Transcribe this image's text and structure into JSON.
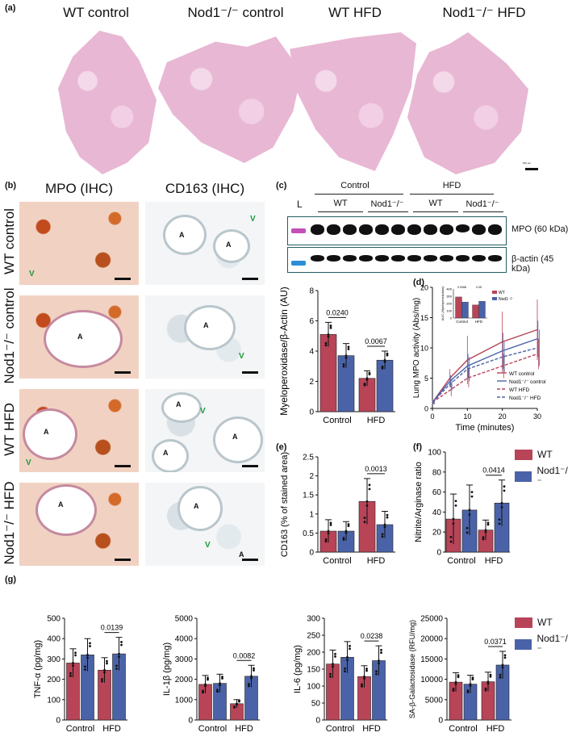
{
  "panel_a": {
    "label": "(a)",
    "columns": [
      "WT control",
      "Nod1⁻/⁻ control",
      "WT HFD",
      "Nod1⁻/⁻ HFD"
    ],
    "scale_bar": "500 µm"
  },
  "panel_b": {
    "label": "(b)",
    "col_mpo": "MPO (IHC)",
    "col_cd163": "CD163 (IHC)",
    "rows": [
      "WT control",
      "Nod1⁻/⁻ control",
      "WT HFD",
      "Nod1⁻/⁻ HFD"
    ],
    "lumen": "A",
    "vessel": "V"
  },
  "panel_c": {
    "label": "(c)",
    "ladder": "L",
    "group_control": "Control",
    "group_hfd": "HFD",
    "sub_wt": "WT",
    "sub_nod": "Nod1⁻/⁻",
    "band_mpo": "MPO (60 kDa)",
    "band_actin": "β-actin (45 kDa)"
  },
  "colors": {
    "wt": "#b84458",
    "nod": "#4a63a8",
    "border": "#245e62"
  },
  "chart_data": [
    {
      "id": "c",
      "type": "bar",
      "ylabel": "Myeloperoxidase/β-Actin (AU)",
      "categories": [
        "Control",
        "HFD"
      ],
      "ylim": [
        0,
        8
      ],
      "yticks": [
        0,
        2,
        4,
        6,
        8
      ],
      "series": [
        {
          "values": [
            5.1,
            2.2
          ],
          "err": [
            0.8,
            0.5
          ]
        },
        {
          "values": [
            3.7,
            3.4
          ],
          "err": [
            0.8,
            0.6
          ]
        }
      ],
      "pvalues": [
        "0.0240",
        "0.0067"
      ]
    },
    {
      "id": "d",
      "type": "line",
      "xlabel": "Time (minutes)",
      "ylabel": "Lung MPO activity (Abs/mg)",
      "x": [
        0,
        5,
        10,
        20,
        30
      ],
      "xlim": [
        0,
        30
      ],
      "ylim": [
        0,
        20
      ],
      "yticks": [
        0,
        5,
        10,
        15,
        20
      ],
      "xticks": [
        0,
        10,
        20,
        30
      ],
      "series": [
        {
          "name": "WT control",
          "values": [
            1,
            5,
            8,
            11,
            13
          ],
          "err": [
            0.4,
            1.5,
            4,
            5,
            5
          ]
        },
        {
          "name": "Nod1⁻/⁻ control",
          "values": [
            1,
            4.5,
            7,
            9.5,
            11.5
          ],
          "err": [
            0.3,
            1,
            2,
            3,
            3
          ]
        },
        {
          "name": "WT HFD",
          "values": [
            1,
            3,
            5,
            7,
            9
          ],
          "err": [
            0.3,
            1,
            1.5,
            2,
            2.5
          ]
        },
        {
          "name": "Nod1⁻/⁻ HFD",
          "values": [
            1,
            4,
            6.5,
            8.5,
            10
          ],
          "err": [
            0.3,
            1,
            2,
            2.5,
            3
          ]
        }
      ],
      "inset": {
        "ylabel": "AUC (Myeloperoxidase)",
        "categories": [
          "Control",
          "HFD"
        ],
        "ylim": [
          0,
          400
        ],
        "yticks": [
          0,
          100,
          200,
          300,
          400
        ],
        "series": [
          {
            "name": "WT",
            "values": [
              290,
              180
            ]
          },
          {
            "name": "Nod1⁻/⁻",
            "values": [
              220,
              230
            ]
          }
        ],
        "pvalues": [
          "0.0068",
          "0.05"
        ]
      }
    },
    {
      "id": "e",
      "type": "bar",
      "ylabel": "CD163 (% of stained area)",
      "categories": [
        "Control",
        "HFD"
      ],
      "ylim": [
        0,
        2.5
      ],
      "yticks": [
        0,
        0.5,
        1,
        1.5,
        2,
        2.5
      ],
      "series": [
        {
          "values": [
            0.55,
            1.33
          ],
          "err": [
            0.3,
            0.6
          ]
        },
        {
          "values": [
            0.55,
            0.72
          ],
          "err": [
            0.25,
            0.35
          ]
        }
      ],
      "pvalues": [
        "",
        "0.0013"
      ]
    },
    {
      "id": "f",
      "type": "bar",
      "ylabel": "Nitrite/Arginase ratio",
      "categories": [
        "Control",
        "HFD"
      ],
      "ylim": [
        0,
        100
      ],
      "yticks": [
        0,
        20,
        40,
        60,
        80,
        100
      ],
      "series": [
        {
          "values": [
            33,
            22
          ],
          "err": [
            25,
            10
          ]
        },
        {
          "values": [
            42,
            49
          ],
          "err": [
            25,
            23
          ]
        }
      ],
      "pvalues": [
        "",
        "0.0414"
      ]
    },
    {
      "id": "g1",
      "type": "bar",
      "ylabel": "TNF-α (pg/mg)",
      "categories": [
        "Control",
        "HFD"
      ],
      "ylim": [
        0,
        500
      ],
      "yticks": [
        0,
        100,
        200,
        300,
        400,
        500
      ],
      "series": [
        {
          "values": [
            280,
            245
          ]
        },
        {
          "values": [
            320,
            325
          ]
        }
      ],
      "pvalues": [
        "",
        "0.0139"
      ]
    },
    {
      "id": "g2",
      "type": "bar",
      "ylabel": "IL-1β (pg/mg)",
      "categories": [
        "Control",
        "HFD"
      ],
      "ylim": [
        0,
        5000
      ],
      "yticks": [
        0,
        1000,
        2000,
        3000,
        4000,
        5000
      ],
      "series": [
        {
          "values": [
            1750,
            800
          ]
        },
        {
          "values": [
            1800,
            2150
          ]
        }
      ],
      "pvalues": [
        "",
        "0.0082"
      ]
    },
    {
      "id": "g3",
      "type": "bar",
      "ylabel": "IL-6 (pg/mg)",
      "categories": [
        "Control",
        "HFD"
      ],
      "ylim": [
        0,
        300
      ],
      "yticks": [
        0,
        50,
        100,
        150,
        200,
        250,
        300
      ],
      "series": [
        {
          "values": [
            165,
            128
          ]
        },
        {
          "values": [
            185,
            175
          ]
        }
      ],
      "pvalues": [
        "",
        "0.0238"
      ]
    },
    {
      "id": "g4",
      "type": "bar",
      "ylabel": "SA-β-Galactosidase (RFU/mg)",
      "categories": [
        "Control",
        "HFD"
      ],
      "ylim": [
        0,
        25000
      ],
      "yticks": [
        0,
        5000,
        10000,
        15000,
        20000,
        25000
      ],
      "series": [
        {
          "values": [
            9300,
            9400
          ]
        },
        {
          "values": [
            8800,
            13500
          ]
        }
      ],
      "pvalues": [
        "",
        "0.0371"
      ]
    }
  ],
  "legend": {
    "wt": "WT",
    "nod": "Nod1⁻/⁻"
  },
  "panel_labels": {
    "d": "(d)",
    "e": "(e)",
    "f": "(f)",
    "g": "(g)"
  }
}
